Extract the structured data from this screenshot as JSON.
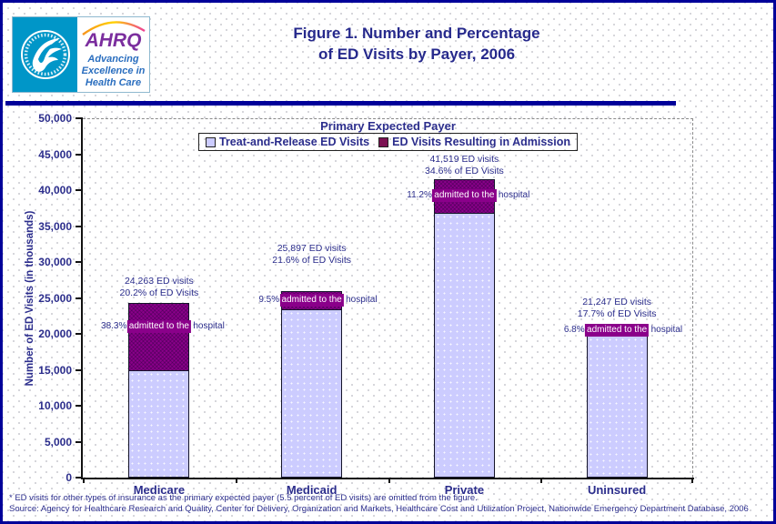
{
  "header": {
    "title_line1": "Figure 1. Number and Percentage",
    "title_line2": "of ED Visits by Payer, 2006",
    "logo": {
      "acronym": "AHRQ",
      "tagline1": "Advancing",
      "tagline2": "Excellence in",
      "tagline3": "Health Care"
    }
  },
  "chart": {
    "legend": [
      {
        "label": "Treat-and-Release ED Visits",
        "color": "#CCCCFF"
      },
      {
        "label": "ED Visits Resulting in Admission",
        "color": "#7C1152"
      }
    ]
  },
  "chart_data": {
    "type": "bar",
    "stacked": true,
    "title": "Primary Expected Payer",
    "categories": [
      "Medicare",
      "Medicaid",
      "Private",
      "Uninsured"
    ],
    "series": [
      {
        "name": "Treat-and-Release ED Visits",
        "color": "#CCCCFF",
        "values": [
          14970,
          23437,
          36869,
          19802
        ]
      },
      {
        "name": "ED Visits Resulting in Admission",
        "color": "#8A008A",
        "values": [
          9293,
          2460,
          4650,
          1445
        ]
      }
    ],
    "totals": [
      24263,
      25897,
      41519,
      21247
    ],
    "total_share_of_all_ed_visits_pct": [
      20.2,
      21.6,
      34.6,
      17.7
    ],
    "admitted_pct_of_payer": [
      38.3,
      9.5,
      11.2,
      6.8
    ],
    "xlabel": "",
    "ylabel": "Number of ED Visits (in thousands)",
    "ylim": [
      0,
      50000
    ],
    "y_ticks": [
      "0",
      "5,000",
      "10,000",
      "15,000",
      "20,000",
      "25,000",
      "30,000",
      "35,000",
      "40,000",
      "45,000",
      "50,000"
    ],
    "grid": false,
    "legend_position": "top-center-inside",
    "annotations": [
      {
        "visits": "24,263 ED visits",
        "share": "20.2% of ED Visits",
        "admitted_pct": "38.3%",
        "admitted_mid": "admitted to the",
        "admitted_tail": "hospital"
      },
      {
        "visits": "25,897 ED visits",
        "share": "21.6% of ED Visits",
        "admitted_pct": "9.5%",
        "admitted_mid": "admitted to the",
        "admitted_tail": "hospital"
      },
      {
        "visits": "41,519 ED visits",
        "share": "34.6% of ED Visits",
        "admitted_pct": "11.2%",
        "admitted_mid": "admitted to the",
        "admitted_tail": "hospital"
      },
      {
        "visits": "21,247 ED visits",
        "share": "17.7% of ED Visits",
        "admitted_pct": "6.8%",
        "admitted_mid": "admitted to the",
        "admitted_tail": "hospital"
      }
    ]
  },
  "footnotes": {
    "line1": "* ED visits for other types of insurance as the primary expected payer (5.5 percent of ED visits) are omitted from the figure.",
    "line2": "Source: Agency for Healthcare Research and Quality, Center for Delivery, Organization and Markets, Healthcare Cost and Utilization Project, Nationwide Emergency Department Database, 2006"
  },
  "colors": {
    "page_border": "#000099",
    "header_divider": "#000099",
    "chart_text_navy": "#2B2D8C",
    "figure_title_navy": "#26298C",
    "treat_release_fill": "#CCCCFF",
    "admission_fill": "#8A008A",
    "admission_legend_marker": "#7C1152",
    "hhs_logo_teal": "#0096C8",
    "ahrq_purple": "#7B2E9E",
    "ahrq_blue": "#2A6EBF"
  }
}
